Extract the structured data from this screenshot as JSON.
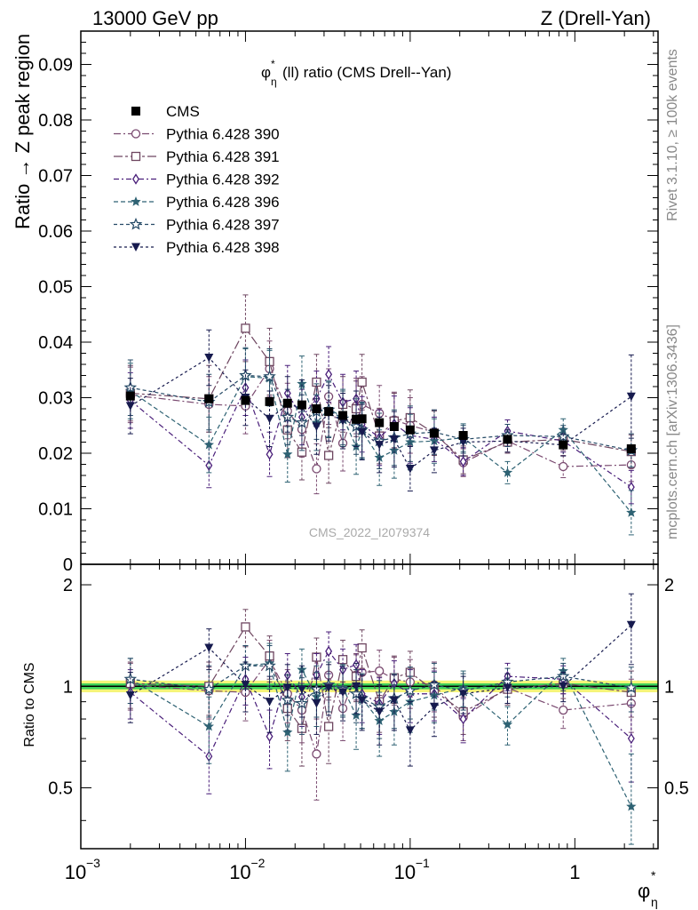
{
  "header": {
    "left": "13000 GeV pp",
    "right": "Z (Drell-Yan)"
  },
  "side_labels": {
    "rivet": "Rivet 3.1.10, ≥ 100k events",
    "mcplots": "mcplots.cern.ch [arXiv:1306.3436]"
  },
  "colors": {
    "cms": "#000000",
    "band_green": "#3ed25a",
    "band_yellow": "#f5f57a",
    "s390": "#7a4a70",
    "s391": "#6e4660",
    "s392": "#4a1f7a",
    "s396": "#2e6273",
    "s397": "#254a66",
    "s398": "#161a4e"
  },
  "chart_data": {
    "type": "scatter",
    "title": "φ*η(ll) ratio (CMS Drell--Yan)",
    "title_main": "φ",
    "title_star": "*",
    "title_sub": "η",
    "title_rest": "(ll) ratio (CMS Drell--Yan)",
    "watermark": "CMS_2022_I2079374",
    "xlabel": "φ",
    "xlabel_star": "*",
    "xlabel_sub": "η",
    "ylabel": "Ratio → Z peak region",
    "ratio_ylabel": "Ratio to CMS",
    "xscale": "log",
    "xlim": [
      0.001,
      3.2
    ],
    "ylim": [
      0,
      0.096
    ],
    "ratio_ylim": [
      0.33,
      2.3
    ],
    "legend_position": "top-left",
    "x_tick_labels": [
      {
        "v": 0.001,
        "base": "10",
        "exp": "−3"
      },
      {
        "v": 0.01,
        "base": "10",
        "exp": "−2"
      },
      {
        "v": 0.1,
        "base": "10",
        "exp": "−1"
      },
      {
        "v": 1,
        "base": "1",
        "exp": ""
      }
    ],
    "y_ticks": [
      {
        "v": 0,
        "label": "0"
      },
      {
        "v": 0.01,
        "label": "0.01"
      },
      {
        "v": 0.02,
        "label": "0.02"
      },
      {
        "v": 0.03,
        "label": "0.03"
      },
      {
        "v": 0.04,
        "label": "0.04"
      },
      {
        "v": 0.05,
        "label": "0.05"
      },
      {
        "v": 0.06,
        "label": "0.06"
      },
      {
        "v": 0.07,
        "label": "0.07"
      },
      {
        "v": 0.08,
        "label": "0.08"
      },
      {
        "v": 0.09,
        "label": "0.09"
      }
    ],
    "ratio_ticks": [
      {
        "v": 0.5,
        "label": "0.5"
      },
      {
        "v": 1,
        "label": "1"
      },
      {
        "v": 2,
        "label": "2"
      }
    ],
    "x": [
      0.002,
      0.006,
      0.01,
      0.014,
      0.018,
      0.022,
      0.027,
      0.032,
      0.039,
      0.047,
      0.051,
      0.065,
      0.08,
      0.1,
      0.14,
      0.21,
      0.39,
      0.85,
      2.2
    ],
    "series": [
      {
        "name": "CMS",
        "key": "cms",
        "marker": "filled-square",
        "dash": "none",
        "values": [
          0.0303,
          0.0298,
          0.0295,
          0.0293,
          0.029,
          0.0287,
          0.028,
          0.0275,
          0.0268,
          0.0261,
          0.0262,
          0.0255,
          0.0248,
          0.0242,
          0.0236,
          0.0232,
          0.0225,
          0.0215,
          0.0208
        ],
        "errors": [
          0.0004,
          0.0004,
          0.0004,
          0.0004,
          0.0004,
          0.0004,
          0.0004,
          0.0004,
          0.0004,
          0.0004,
          0.0004,
          0.0004,
          0.0004,
          0.0004,
          0.0004,
          0.0004,
          0.0004,
          0.0004,
          0.0004
        ],
        "ratio": [
          1,
          1,
          1,
          1,
          1,
          1,
          1,
          1,
          1,
          1,
          1,
          1,
          1,
          1,
          1,
          1,
          1,
          1,
          1
        ],
        "ratio_errors": [
          0,
          0,
          0,
          0,
          0,
          0,
          0,
          0,
          0,
          0,
          0,
          0,
          0,
          0,
          0,
          0,
          0,
          0,
          0
        ]
      },
      {
        "name": "Pythia 6.428 390",
        "key": "s390",
        "marker": "open-circle",
        "dash": "8,3,2,3",
        "values": [
          0.0305,
          0.0288,
          0.0285,
          0.0352,
          0.0276,
          0.0243,
          0.0172,
          0.0302,
          0.0218,
          0.0285,
          0.0288,
          0.0272,
          0.026,
          0.025,
          0.0238,
          0.0183,
          0.0222,
          0.0176,
          0.0179
        ],
        "errors": [
          0.005,
          0.005,
          0.005,
          0.005,
          0.005,
          0.005,
          0.0045,
          0.005,
          0.005,
          0.005,
          0.005,
          0.005,
          0.005,
          0.005,
          0.004,
          0.0025,
          0.002,
          0.002,
          0.003
        ],
        "ratio": [
          1.01,
          0.97,
          0.96,
          1.2,
          0.95,
          0.85,
          0.63,
          1.08,
          0.86,
          1.08,
          1.1,
          1.11,
          1.05,
          1.03,
          1.01,
          0.81,
          0.99,
          0.85,
          0.89
        ],
        "ratio_errors": [
          0.16,
          0.17,
          0.17,
          0.17,
          0.17,
          0.17,
          0.17,
          0.17,
          0.17,
          0.17,
          0.17,
          0.17,
          0.17,
          0.17,
          0.17,
          0.12,
          0.1,
          0.1,
          0.16
        ]
      },
      {
        "name": "Pythia 6.428 391",
        "key": "s391",
        "marker": "open-square",
        "dash": "10,3,3,3",
        "values": [
          0.0308,
          0.0298,
          0.0425,
          0.0365,
          0.0242,
          0.0202,
          0.0328,
          0.0196,
          0.0288,
          0.028,
          0.0328,
          0.0231,
          0.0258,
          0.0264,
          0.0236,
          0.0188,
          0.022,
          0.0225,
          0.0203
        ],
        "errors": [
          0.005,
          0.006,
          0.006,
          0.006,
          0.005,
          0.005,
          0.005,
          0.005,
          0.005,
          0.005,
          0.005,
          0.005,
          0.005,
          0.005,
          0.004,
          0.0025,
          0.002,
          0.002,
          0.003
        ],
        "ratio": [
          1.02,
          1.0,
          1.5,
          1.23,
          0.86,
          0.75,
          1.22,
          0.76,
          1.2,
          1.07,
          1.3,
          0.9,
          1.06,
          1.1,
          0.97,
          0.84,
          0.98,
          1.02,
          0.96
        ],
        "ratio_errors": [
          0.16,
          0.18,
          0.19,
          0.18,
          0.17,
          0.17,
          0.17,
          0.17,
          0.17,
          0.17,
          0.17,
          0.17,
          0.17,
          0.17,
          0.16,
          0.12,
          0.1,
          0.1,
          0.15
        ]
      },
      {
        "name": "Pythia 6.428 392",
        "key": "s392",
        "marker": "open-diamond",
        "dash": "6,3,2,3",
        "values": [
          0.0295,
          0.0178,
          0.0318,
          0.0198,
          0.0308,
          0.0265,
          0.0298,
          0.0342,
          0.0292,
          0.0298,
          0.0252,
          0.0228,
          0.0253,
          0.0232,
          0.0225,
          0.0185,
          0.024,
          0.0222,
          0.0139
        ],
        "errors": [
          0.005,
          0.004,
          0.005,
          0.004,
          0.005,
          0.005,
          0.005,
          0.005,
          0.005,
          0.005,
          0.005,
          0.005,
          0.005,
          0.005,
          0.004,
          0.0025,
          0.002,
          0.002,
          0.003
        ],
        "ratio": [
          0.96,
          0.62,
          1.05,
          0.71,
          1.08,
          0.93,
          1.08,
          1.27,
          1.12,
          1.16,
          0.95,
          0.89,
          1.02,
          0.95,
          0.95,
          0.8,
          1.07,
          1.05,
          0.7
        ],
        "ratio_errors": [
          0.16,
          0.14,
          0.17,
          0.14,
          0.17,
          0.17,
          0.17,
          0.18,
          0.17,
          0.17,
          0.17,
          0.17,
          0.17,
          0.17,
          0.16,
          0.12,
          0.1,
          0.1,
          0.18
        ]
      },
      {
        "name": "Pythia 6.428 396",
        "key": "s396",
        "marker": "filled-star",
        "dash": "5,3",
        "values": [
          0.0312,
          0.0215,
          0.0338,
          0.0335,
          0.0198,
          0.0325,
          0.0255,
          0.028,
          0.0265,
          0.0212,
          0.024,
          0.0192,
          0.0205,
          0.022,
          0.0222,
          0.0228,
          0.0165,
          0.0242,
          0.0093
        ],
        "errors": [
          0.005,
          0.005,
          0.005,
          0.005,
          0.005,
          0.005,
          0.005,
          0.005,
          0.005,
          0.005,
          0.005,
          0.005,
          0.005,
          0.005,
          0.004,
          0.0025,
          0.002,
          0.002,
          0.004
        ],
        "ratio": [
          1.05,
          0.76,
          1.15,
          1.17,
          0.73,
          1.12,
          0.93,
          1.01,
          0.99,
          0.82,
          0.92,
          0.79,
          0.84,
          0.9,
          0.94,
          0.99,
          0.77,
          1.11,
          0.44
        ],
        "ratio_errors": [
          0.16,
          0.17,
          0.17,
          0.17,
          0.17,
          0.17,
          0.17,
          0.17,
          0.17,
          0.17,
          0.17,
          0.17,
          0.17,
          0.17,
          0.16,
          0.12,
          0.1,
          0.1,
          0.19
        ]
      },
      {
        "name": "Pythia 6.428 397",
        "key": "s397",
        "marker": "open-star",
        "dash": "4,3",
        "values": [
          0.0318,
          0.0292,
          0.034,
          0.0338,
          0.0265,
          0.0255,
          0.0275,
          0.0278,
          0.0262,
          0.0248,
          0.0242,
          0.0222,
          0.0228,
          0.0235,
          0.0238,
          0.0225,
          0.0232,
          0.023,
          0.0205
        ],
        "errors": [
          0.005,
          0.005,
          0.005,
          0.005,
          0.005,
          0.005,
          0.005,
          0.005,
          0.005,
          0.005,
          0.005,
          0.005,
          0.005,
          0.005,
          0.004,
          0.0025,
          0.002,
          0.002,
          0.003
        ],
        "ratio": [
          1.05,
          0.98,
          1.15,
          1.15,
          0.91,
          0.89,
          0.98,
          1.01,
          0.98,
          0.95,
          0.92,
          0.87,
          0.92,
          0.97,
          1.01,
          0.97,
          1.03,
          1.07,
          0.99
        ],
        "ratio_errors": [
          0.16,
          0.17,
          0.17,
          0.17,
          0.17,
          0.17,
          0.17,
          0.17,
          0.17,
          0.17,
          0.17,
          0.17,
          0.17,
          0.17,
          0.16,
          0.12,
          0.1,
          0.1,
          0.15
        ]
      },
      {
        "name": "Pythia 6.428 398",
        "key": "s398",
        "marker": "filled-triangle-down",
        "dash": "3,3",
        "values": [
          0.0285,
          0.0372,
          0.03,
          0.0262,
          0.0288,
          0.0282,
          0.0248,
          0.0272,
          0.0258,
          0.0262,
          0.0238,
          0.0215,
          0.0225,
          0.0172,
          0.0205,
          0.022,
          0.0222,
          0.0215,
          0.0302
        ],
        "errors": [
          0.005,
          0.005,
          0.005,
          0.005,
          0.005,
          0.005,
          0.005,
          0.005,
          0.005,
          0.005,
          0.005,
          0.005,
          0.005,
          0.004,
          0.004,
          0.0025,
          0.002,
          0.002,
          0.0075
        ],
        "ratio": [
          0.94,
          1.3,
          1.01,
          0.9,
          0.99,
          0.98,
          0.89,
          0.99,
          0.96,
          1.0,
          0.91,
          0.84,
          0.91,
          0.74,
          0.87,
          0.95,
          0.99,
          1.0,
          1.52
        ],
        "ratio_errors": [
          0.16,
          0.18,
          0.17,
          0.17,
          0.17,
          0.17,
          0.17,
          0.17,
          0.17,
          0.17,
          0.17,
          0.17,
          0.17,
          0.16,
          0.16,
          0.12,
          0.1,
          0.1,
          0.36
        ]
      }
    ]
  }
}
